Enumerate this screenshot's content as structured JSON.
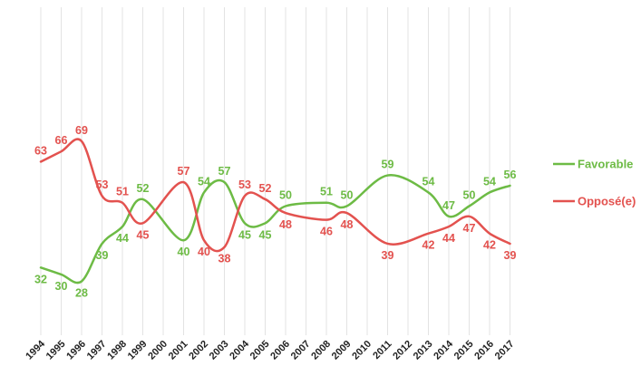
{
  "chart_data": {
    "type": "line",
    "title": "",
    "xlabel": "",
    "ylabel": "",
    "x": [
      "1994",
      "1995",
      "1996",
      "1997",
      "1998",
      "1999",
      "2000",
      "2001",
      "2002",
      "2003",
      "2004",
      "2005",
      "2006",
      "2007",
      "2008",
      "2009",
      "2010",
      "2011",
      "2012",
      "2013",
      "2014",
      "2015",
      "2016",
      "2017"
    ],
    "ylim": [
      0,
      100
    ],
    "grid": "vertical",
    "legend_position": "right",
    "series": [
      {
        "name": "Favorable",
        "color": "#6dbb45",
        "values": [
          32,
          30,
          28,
          39,
          44,
          52,
          null,
          40,
          54,
          57,
          45,
          45,
          50,
          null,
          51,
          50,
          null,
          59,
          null,
          54,
          47,
          50,
          54,
          56
        ]
      },
      {
        "name": "Opposé(e)",
        "color": "#e3524f",
        "values": [
          63,
          66,
          69,
          53,
          51,
          45,
          null,
          57,
          40,
          38,
          53,
          52,
          48,
          null,
          46,
          48,
          null,
          39,
          null,
          42,
          44,
          47,
          42,
          39
        ]
      }
    ]
  }
}
